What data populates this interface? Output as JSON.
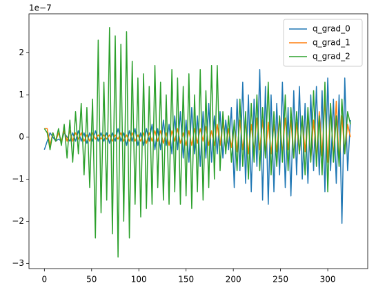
{
  "chart_data": {
    "type": "line",
    "offset_text": "1e−7",
    "x": [
      0,
      3,
      6,
      9,
      12,
      15,
      18,
      21,
      24,
      27,
      30,
      33,
      36,
      39,
      42,
      45,
      48,
      51,
      54,
      57,
      60,
      63,
      66,
      69,
      72,
      75,
      78,
      81,
      84,
      87,
      90,
      93,
      96,
      99,
      102,
      105,
      108,
      111,
      114,
      117,
      120,
      123,
      126,
      129,
      132,
      135,
      138,
      141,
      144,
      147,
      150,
      153,
      156,
      159,
      162,
      165,
      168,
      171,
      174,
      177,
      180,
      183,
      186,
      189,
      192,
      195,
      198,
      201,
      204,
      207,
      210,
      213,
      216,
      219,
      222,
      225,
      228,
      231,
      234,
      237,
      240,
      243,
      246,
      249,
      252,
      255,
      258,
      261,
      264,
      267,
      270,
      273,
      276,
      279,
      282,
      285,
      288,
      291,
      294,
      297,
      300,
      303,
      306,
      309,
      312,
      315,
      318,
      321,
      324
    ],
    "series": [
      {
        "name": "q_grad_0",
        "color": "#1f77b4",
        "values": [
          -0.3,
          -0.1,
          0.1,
          0.0,
          -0.1,
          -0.05,
          -0.1,
          0.1,
          0.0,
          -0.1,
          0.1,
          -0.1,
          0.15,
          -0.1,
          0.1,
          -0.15,
          0.1,
          -0.1,
          0.15,
          -0.1,
          0.1,
          -0.1,
          0.1,
          -0.15,
          0.1,
          -0.1,
          0.2,
          -0.1,
          0.1,
          -0.2,
          0.15,
          -0.1,
          0.2,
          -0.2,
          0.1,
          -0.2,
          0.2,
          -0.1,
          0.3,
          -0.3,
          0.2,
          -0.3,
          0.4,
          -0.2,
          0.3,
          -0.4,
          0.5,
          -0.3,
          0.6,
          -0.5,
          0.4,
          -0.6,
          0.7,
          -0.4,
          0.5,
          -0.7,
          0.6,
          -0.5,
          0.8,
          -0.6,
          0.5,
          -0.4,
          0.6,
          -0.5,
          0.4,
          -0.3,
          0.7,
          -1.2,
          0.9,
          -0.8,
          1.3,
          -1.1,
          1.0,
          -1.3,
          0.9,
          -0.7,
          1.6,
          -1.5,
          1.2,
          -1.6,
          1.0,
          -1.3,
          0.8,
          -0.9,
          1.3,
          -1.2,
          0.7,
          -1.4,
          1.1,
          -0.9,
          1.2,
          -1.0,
          0.8,
          -1.1,
          1.0,
          -0.8,
          1.2,
          -0.9,
          1.1,
          -1.3,
          1.4,
          -0.8,
          0.9,
          -1.1,
          1.0,
          -2.05,
          1.4,
          -0.8,
          0.4
        ]
      },
      {
        "name": "q_grad_1",
        "color": "#ff7f0e",
        "values": [
          0.2,
          0.2,
          -0.2,
          0.1,
          -0.1,
          0.1,
          -0.1,
          0.15,
          -0.1,
          0.15,
          -0.1,
          0.1,
          -0.05,
          0.1,
          -0.1,
          0.05,
          -0.1,
          0.1,
          -0.05,
          0.05,
          -0.05,
          0.05,
          -0.05,
          0.05,
          -0.1,
          0.05,
          -0.05,
          0.1,
          -0.1,
          0.05,
          -0.1,
          0.1,
          -0.1,
          0.05,
          -0.1,
          0.1,
          -0.15,
          0.1,
          -0.1,
          0.15,
          -0.1,
          0.15,
          -0.15,
          0.1,
          -0.2,
          0.15,
          -0.1,
          0.2,
          -0.15,
          0.1,
          -0.2,
          0.15,
          -0.2,
          0.2,
          -0.15,
          0.2,
          -0.1,
          0.25,
          -0.2,
          0.15,
          -0.2,
          0.3,
          -0.2,
          0.35,
          -0.3,
          0.2,
          -0.25,
          0.3,
          -0.35,
          0.4,
          -0.3,
          0.35,
          -0.4,
          0.3,
          -0.35,
          0.45,
          -0.3,
          0.4,
          -0.45,
          0.35,
          -0.4,
          0.3,
          -0.35,
          0.5,
          -0.4,
          0.45,
          -0.3,
          0.4,
          -0.5,
          0.35,
          -0.4,
          0.45,
          -0.35,
          0.5,
          -0.55,
          0.4,
          -0.5,
          0.6,
          -0.45,
          0.9,
          -0.6,
          0.7,
          -0.5,
          0.85,
          -0.6,
          0.5,
          -0.4,
          0.3,
          0.0
        ]
      },
      {
        "name": "q_grad_2",
        "color": "#2ca02c",
        "values": [
          0.2,
          0.1,
          -0.3,
          0.1,
          -0.1,
          0.2,
          -0.2,
          0.3,
          -0.5,
          0.4,
          -0.6,
          0.6,
          -0.4,
          0.8,
          -0.9,
          0.7,
          -1.2,
          0.9,
          -2.4,
          2.3,
          -1.8,
          1.3,
          -1.5,
          2.6,
          -2.3,
          2.4,
          -2.85,
          2.2,
          -2.0,
          2.5,
          -2.4,
          1.8,
          -1.6,
          1.4,
          -1.9,
          1.5,
          -1.7,
          1.2,
          -1.6,
          1.7,
          -1.2,
          1.3,
          -1.5,
          1.0,
          -1.6,
          1.6,
          -1.3,
          1.4,
          -1.6,
          1.2,
          -1.4,
          1.5,
          -1.7,
          1.0,
          -1.3,
          1.6,
          -1.5,
          1.1,
          -1.2,
          1.7,
          -1.0,
          1.7,
          -0.8,
          0.6,
          -0.4,
          0.5,
          -0.6,
          0.4,
          -0.8,
          0.9,
          -0.7,
          0.6,
          -1.0,
          0.8,
          -0.6,
          1.0,
          -0.8,
          0.7,
          -0.5,
          1.3,
          -0.9,
          0.6,
          -0.7,
          0.5,
          -0.6,
          1.0,
          -0.8,
          0.7,
          -0.5,
          0.6,
          -0.4,
          0.5,
          -0.9,
          0.7,
          -0.6,
          1.1,
          -0.7,
          0.5,
          -0.9,
          1.3,
          -1.3,
          0.8,
          -0.6,
          0.5,
          -0.7,
          0.9,
          -0.4,
          0.6,
          0.3
        ]
      }
    ],
    "xlim": [
      -16.3,
      342.3
    ],
    "ylim": [
      -3.125,
      2.925
    ],
    "xticks": [
      0,
      50,
      100,
      150,
      200,
      250,
      300
    ],
    "yticks": [
      {
        "value": -3,
        "label": "−3"
      },
      {
        "value": -2,
        "label": "−2"
      },
      {
        "value": -1,
        "label": "−1"
      },
      0,
      1,
      2
    ],
    "grid": false,
    "legend": "upper right"
  }
}
